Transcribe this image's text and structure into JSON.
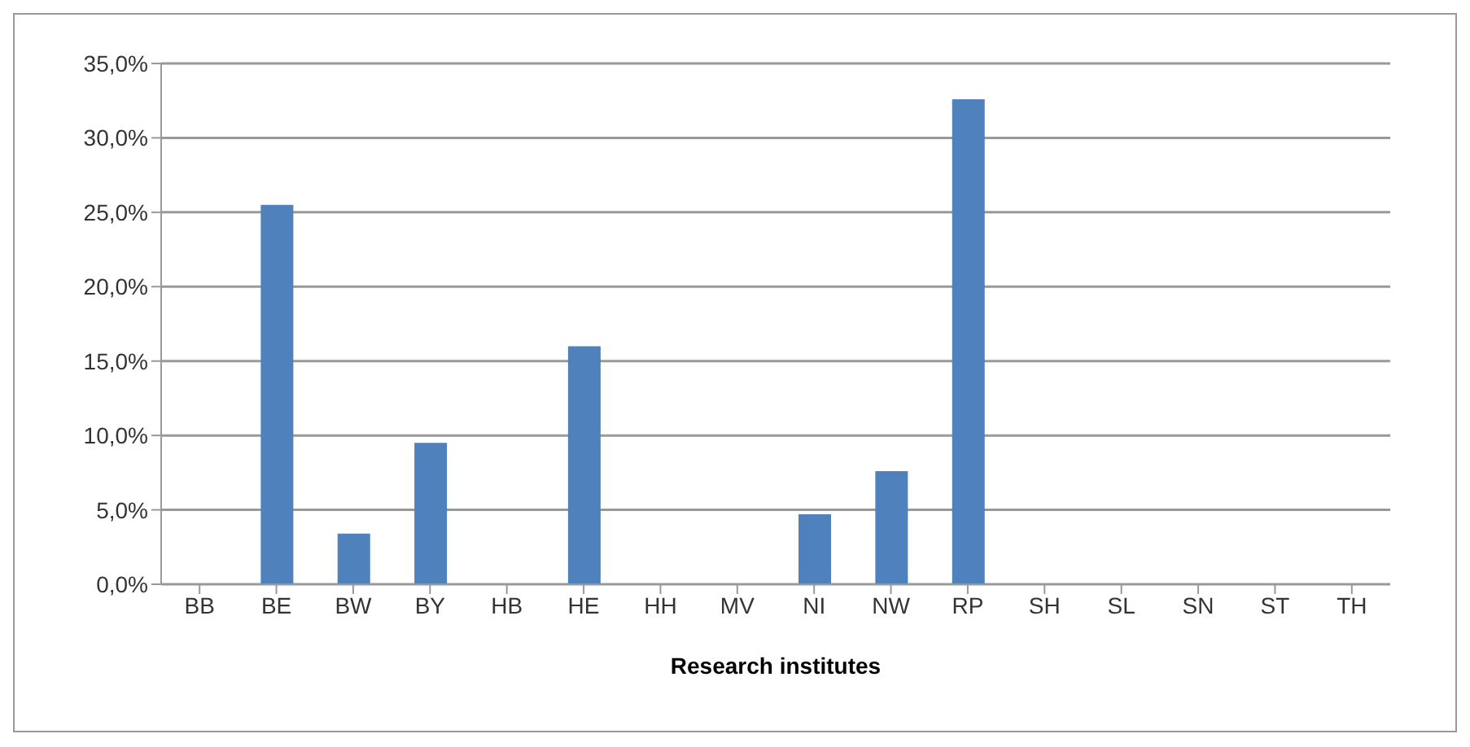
{
  "chart_data": {
    "type": "bar",
    "xlabel": "Research institutes",
    "categories": [
      "BB",
      "BE",
      "BW",
      "BY",
      "HB",
      "HE",
      "HH",
      "MV",
      "NI",
      "NW",
      "RP",
      "SH",
      "SL",
      "SN",
      "ST",
      "TH"
    ],
    "values": [
      0,
      25.5,
      3.4,
      9.5,
      0,
      16.0,
      0,
      0,
      4.7,
      7.6,
      32.6,
      0,
      0,
      0,
      0,
      0
    ],
    "color": "#4f81bd",
    "ylim": [
      0,
      35
    ],
    "yticks": [
      {
        "value": 0,
        "label": "0,0%"
      },
      {
        "value": 5,
        "label": "5,0%"
      },
      {
        "value": 10,
        "label": "10,0%"
      },
      {
        "value": 15,
        "label": "15,0%"
      },
      {
        "value": 20,
        "label": "20,0%"
      },
      {
        "value": 25,
        "label": "25,0%"
      },
      {
        "value": 30,
        "label": "30,0%"
      },
      {
        "value": 35,
        "label": "35,0%"
      }
    ],
    "grid": "y",
    "legend": false
  }
}
